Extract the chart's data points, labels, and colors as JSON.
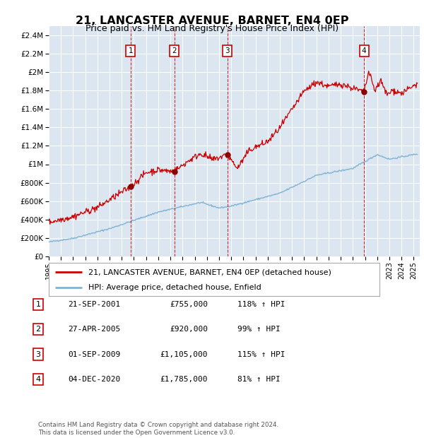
{
  "title": "21, LANCASTER AVENUE, BARNET, EN4 0EP",
  "subtitle": "Price paid vs. HM Land Registry's House Price Index (HPI)",
  "background_color": "#dce6f1",
  "ylim": [
    0,
    2500000
  ],
  "yticks": [
    0,
    200000,
    400000,
    600000,
    800000,
    1000000,
    1200000,
    1400000,
    1600000,
    1800000,
    2000000,
    2200000,
    2400000
  ],
  "ytick_labels": [
    "£0",
    "£200K",
    "£400K",
    "£600K",
    "£800K",
    "£1M",
    "£1.2M",
    "£1.4M",
    "£1.6M",
    "£1.8M",
    "£2M",
    "£2.2M",
    "£2.4M"
  ],
  "xlim_start": 1995.0,
  "xlim_end": 2025.5,
  "xtick_years": [
    1995,
    1996,
    1997,
    1998,
    1999,
    2000,
    2001,
    2002,
    2003,
    2004,
    2005,
    2006,
    2007,
    2008,
    2009,
    2010,
    2011,
    2012,
    2013,
    2014,
    2015,
    2016,
    2017,
    2018,
    2019,
    2020,
    2021,
    2022,
    2023,
    2024,
    2025
  ],
  "red_line_color": "#cc0000",
  "blue_line_color": "#7fb3d3",
  "sale_marker_color": "#8b0000",
  "sale_box_color": "#cc0000",
  "transactions": [
    {
      "num": 1,
      "date": "21-SEP-2001",
      "price": 755000,
      "year": 2001.72,
      "hpi_pct": "118%",
      "arrow": "↑"
    },
    {
      "num": 2,
      "date": "27-APR-2005",
      "price": 920000,
      "year": 2005.32,
      "hpi_pct": "99%",
      "arrow": "↑"
    },
    {
      "num": 3,
      "date": "01-SEP-2009",
      "price": 1105000,
      "year": 2009.67,
      "hpi_pct": "115%",
      "arrow": "↑"
    },
    {
      "num": 4,
      "date": "04-DEC-2020",
      "price": 1785000,
      "year": 2020.92,
      "hpi_pct": "81%",
      "arrow": "↑"
    }
  ],
  "legend_line1": "21, LANCASTER AVENUE, BARNET, EN4 0EP (detached house)",
  "legend_line2": "HPI: Average price, detached house, Enfield",
  "footer_line1": "Contains HM Land Registry data © Crown copyright and database right 2024.",
  "footer_line2": "This data is licensed under the Open Government Licence v3.0."
}
